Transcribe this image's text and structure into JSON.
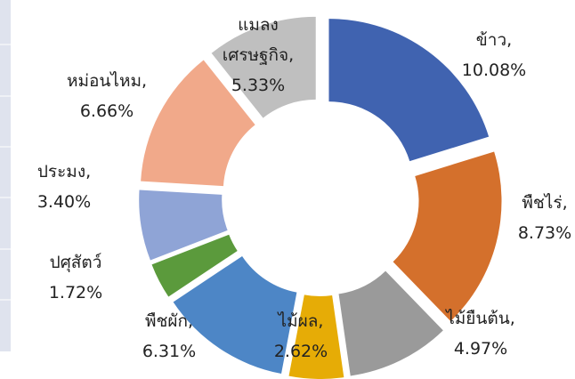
{
  "chart_data": {
    "type": "donut",
    "categories": [
      "ข้าว,",
      "พืชไร่,",
      "ไม้ยืนต้น,",
      "ไม้ผล,",
      "พืชผัก,",
      "ปศุสัตว์",
      "ประมง,",
      "หม่อนไหม,",
      "แมลง\nเศรษฐกิจ,"
    ],
    "values": [
      10.08,
      8.73,
      4.97,
      2.62,
      6.31,
      1.72,
      3.4,
      6.66,
      5.33
    ],
    "value_labels": [
      "10.08%",
      "8.73%",
      "4.97%",
      "2.62%",
      "6.31%",
      "1.72%",
      "3.40%",
      "6.66%",
      "5.33%"
    ],
    "colors": [
      "#4063b0",
      "#d4702c",
      "#9a9a9a",
      "#e6ac06",
      "#4d86c6",
      "#5b9a3c",
      "#8fa4d6",
      "#f1a98a",
      "#bfbfbf"
    ]
  }
}
